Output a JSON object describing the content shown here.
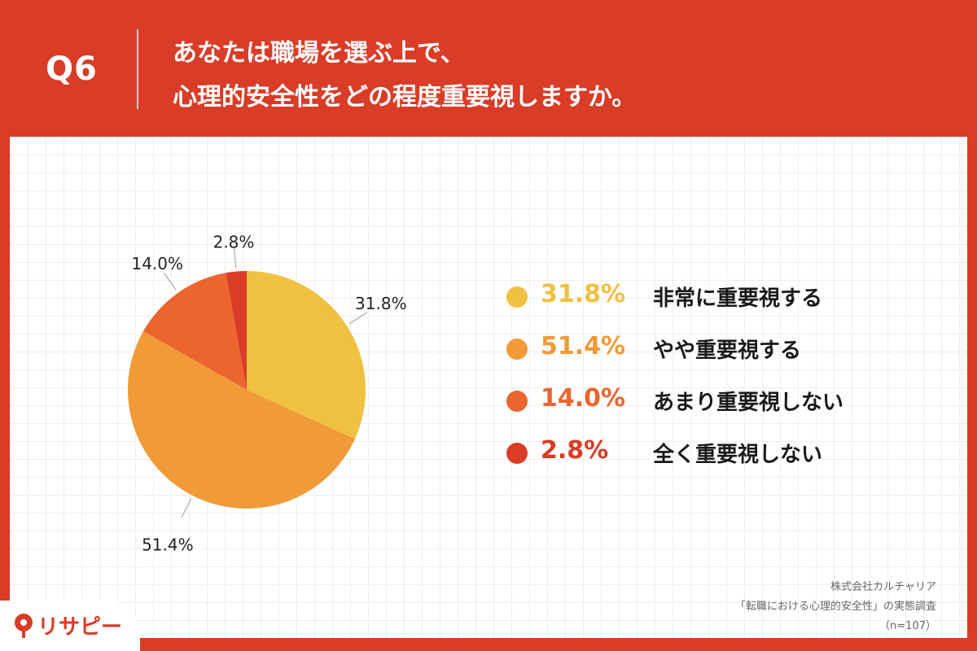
{
  "header": {
    "q_label": "Q6",
    "title_line1": "あなたは職場を選ぶ上で、",
    "title_line2": "心理的安全性をどの程度重要視しますか。"
  },
  "chart_data": {
    "type": "pie",
    "title": "あなたは職場を選ぶ上で、心理的安全性をどの程度重要視しますか。",
    "categories": [
      "非常に重要視する",
      "やや重要視する",
      "あまり重要視しない",
      "全く重要視しない"
    ],
    "values": [
      31.8,
      51.4,
      14.0,
      2.8
    ],
    "labels": [
      "31.8%",
      "51.4%",
      "14.0%",
      "2.8%"
    ],
    "colors": [
      "#f0c040",
      "#f09a38",
      "#ec6530",
      "#d93c27"
    ],
    "legend_position": "right",
    "start": "top, clockwise"
  },
  "legend": [
    {
      "pct": "31.8%",
      "label": "非常に重要視する",
      "color": "#f0c040",
      "text_color": "#f0c040"
    },
    {
      "pct": "51.4%",
      "label": "やや重要視する",
      "color": "#f09a38",
      "text_color": "#f09a38"
    },
    {
      "pct": "14.0%",
      "label": "あまり重要視しない",
      "color": "#ec6530",
      "text_color": "#ec6530"
    },
    {
      "pct": "2.8%",
      "label": "全く重要視しない",
      "color": "#d93c27",
      "text_color": "#d93c27"
    }
  ],
  "source": {
    "line1": "株式会社カルチャリア",
    "line2": "「転職における心理的安全性」の実態調査",
    "line3": "（n=107）"
  },
  "logo": {
    "text": "リサピー",
    "accent": "#d93c27"
  }
}
